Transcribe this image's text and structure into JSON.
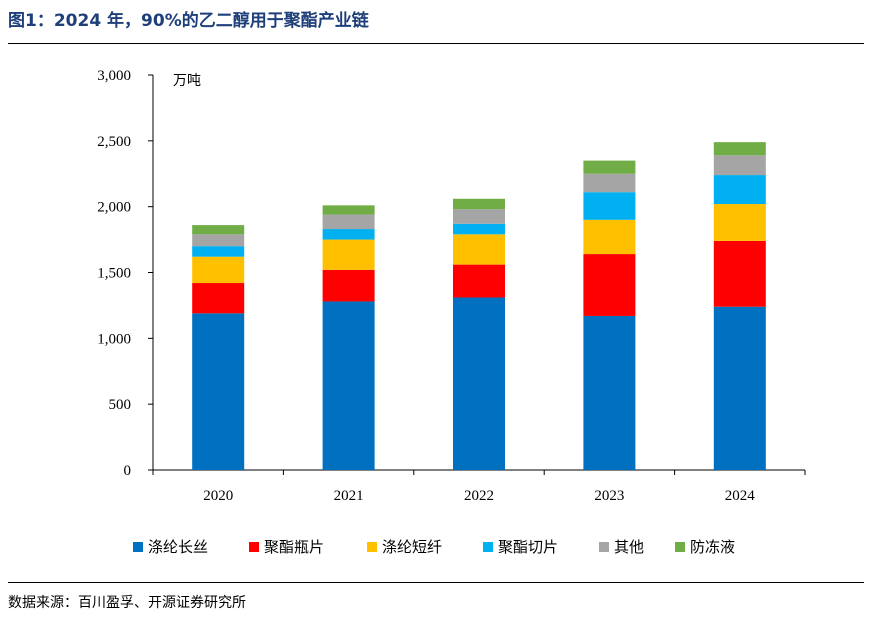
{
  "page": {
    "title": "图1：2024 年，90%的乙二醇用于聚酯产业链",
    "source": "数据来源：百川盈孚、开源证券研究所"
  },
  "chart_data": {
    "type": "bar",
    "stacked": true,
    "title": "",
    "xlabel": "",
    "ylabel": "万吨",
    "ylim": [
      0,
      3000
    ],
    "yticks": [
      0,
      500,
      1000,
      1500,
      2000,
      2500,
      3000
    ],
    "ytick_labels": [
      "0",
      "500",
      "1,000",
      "1,500",
      "2,000",
      "2,500",
      "3,000"
    ],
    "categories": [
      "2020",
      "2021",
      "2022",
      "2023",
      "2024"
    ],
    "grid": false,
    "legend_position": "bottom",
    "series": [
      {
        "name": "涤纶长丝",
        "color": "#0070c0",
        "values": [
          1190,
          1280,
          1310,
          1170,
          1240
        ]
      },
      {
        "name": "聚酯瓶片",
        "color": "#ff0000",
        "values": [
          230,
          240,
          250,
          470,
          500
        ]
      },
      {
        "name": "涤纶短纤",
        "color": "#ffc000",
        "values": [
          200,
          230,
          230,
          260,
          280
        ]
      },
      {
        "name": "聚酯切片",
        "color": "#00b0f0",
        "values": [
          80,
          80,
          80,
          210,
          220
        ]
      },
      {
        "name": "其他",
        "color": "#a5a5a5",
        "values": [
          90,
          110,
          110,
          140,
          150
        ]
      },
      {
        "name": "防冻液",
        "color": "#70ad47",
        "values": [
          70,
          70,
          80,
          100,
          100
        ]
      }
    ]
  }
}
